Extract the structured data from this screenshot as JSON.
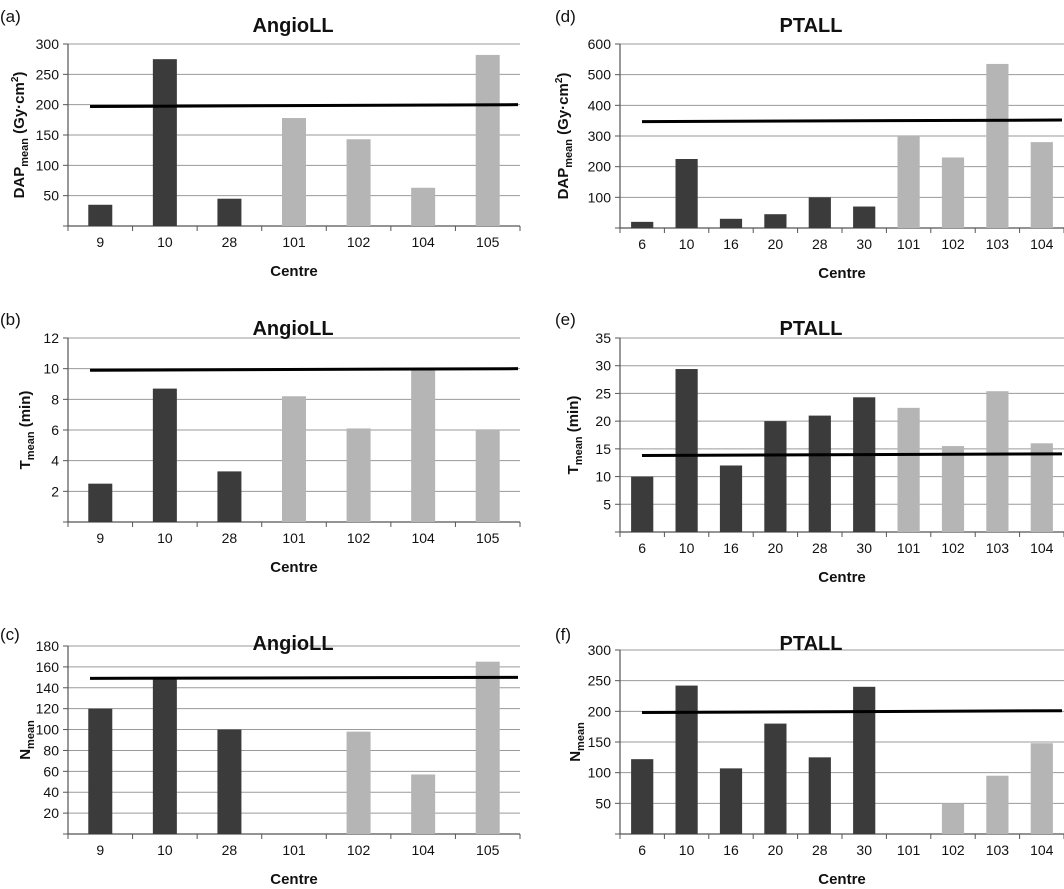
{
  "colors": {
    "dark_bar": "#3b3b3b",
    "light_bar": "#b5b5b5",
    "grid": "#9a9a9a",
    "reference_line": "#000000"
  },
  "chart_data": [
    {
      "type": "bar",
      "panel_label": "(a)",
      "title": "AngioLL",
      "xlabel": "Centre",
      "ylabel_main": "DAP",
      "ylabel_sub": "mean",
      "ylabel_unit": " (Gy·cm",
      "ylabel_sup": "2",
      "ylabel_close": ")",
      "categories": [
        "9",
        "10",
        "28",
        "101",
        "102",
        "104",
        "105"
      ],
      "values": [
        35,
        275,
        45,
        178,
        143,
        63,
        282
      ],
      "bar_groups": [
        "dark",
        "dark",
        "dark",
        "light",
        "light",
        "light",
        "light"
      ],
      "ylim": [
        0,
        300
      ],
      "yticks": [
        50,
        100,
        150,
        200,
        250,
        300
      ],
      "reference_line": [
        197,
        200
      ],
      "grid": true
    },
    {
      "type": "bar",
      "panel_label": "(b)",
      "title": "AngioLL",
      "xlabel": "Centre",
      "ylabel_main": "T",
      "ylabel_sub": "mean",
      "ylabel_unit": " (min)",
      "ylabel_sup": "",
      "ylabel_close": "",
      "categories": [
        "9",
        "10",
        "28",
        "101",
        "102",
        "104",
        "105"
      ],
      "values": [
        2.5,
        8.7,
        3.3,
        8.2,
        6.1,
        10.0,
        6.0
      ],
      "bar_groups": [
        "dark",
        "dark",
        "dark",
        "light",
        "light",
        "light",
        "light"
      ],
      "ylim": [
        0,
        12
      ],
      "yticks": [
        2,
        4,
        6,
        8,
        10,
        12
      ],
      "reference_line": [
        9.9,
        10.0
      ],
      "grid": true
    },
    {
      "type": "bar",
      "panel_label": "(c)",
      "title": "AngioLL",
      "xlabel": "Centre",
      "ylabel_main": "N",
      "ylabel_sub": "mean",
      "ylabel_unit": "",
      "ylabel_sup": "",
      "ylabel_close": "",
      "categories": [
        "9",
        "10",
        "28",
        "101",
        "102",
        "104",
        "105"
      ],
      "values": [
        120,
        150,
        100,
        0,
        98,
        57,
        165
      ],
      "bar_groups": [
        "dark",
        "dark",
        "dark",
        "light",
        "light",
        "light",
        "light"
      ],
      "ylim": [
        0,
        180
      ],
      "yticks": [
        20,
        40,
        60,
        80,
        100,
        120,
        140,
        160,
        180
      ],
      "reference_line": [
        149,
        150
      ],
      "grid": true
    },
    {
      "type": "bar",
      "panel_label": "(d)",
      "title": "PTALL",
      "xlabel": "Centre",
      "ylabel_main": "DAP",
      "ylabel_sub": "mean",
      "ylabel_unit": " (Gy·cm",
      "ylabel_sup": "2",
      "ylabel_close": ")",
      "categories": [
        "6",
        "10",
        "16",
        "20",
        "28",
        "30",
        "101",
        "102",
        "103",
        "104"
      ],
      "values": [
        20,
        225,
        30,
        45,
        100,
        70,
        300,
        230,
        535,
        280
      ],
      "bar_groups": [
        "dark",
        "dark",
        "dark",
        "dark",
        "dark",
        "dark",
        "light",
        "light",
        "light",
        "light"
      ],
      "ylim": [
        0,
        600
      ],
      "yticks": [
        100,
        200,
        300,
        400,
        500,
        600
      ],
      "reference_line": [
        347,
        352
      ],
      "grid": true
    },
    {
      "type": "bar",
      "panel_label": "(e)",
      "title": "PTALL",
      "xlabel": "Centre",
      "ylabel_main": "T",
      "ylabel_sub": "mean",
      "ylabel_unit": " (min)",
      "ylabel_sup": "",
      "ylabel_close": "",
      "categories": [
        "6",
        "10",
        "16",
        "20",
        "28",
        "30",
        "101",
        "102",
        "103",
        "104"
      ],
      "values": [
        10,
        29.4,
        12,
        20,
        21,
        24.3,
        22.4,
        15.5,
        25.4,
        16
      ],
      "bar_groups": [
        "dark",
        "dark",
        "dark",
        "dark",
        "dark",
        "dark",
        "light",
        "light",
        "light",
        "light"
      ],
      "ylim": [
        0,
        35
      ],
      "yticks": [
        5,
        10,
        15,
        20,
        25,
        30,
        35
      ],
      "reference_line": [
        13.8,
        14.1
      ],
      "grid": true
    },
    {
      "type": "bar",
      "panel_label": "(f)",
      "title": "PTALL",
      "xlabel": "Centre",
      "ylabel_main": "N",
      "ylabel_sub": "mean",
      "ylabel_unit": "",
      "ylabel_sup": "",
      "ylabel_close": "",
      "categories": [
        "6",
        "10",
        "16",
        "20",
        "28",
        "30",
        "101",
        "102",
        "103",
        "104"
      ],
      "values": [
        122,
        242,
        107,
        180,
        125,
        240,
        0,
        50,
        95,
        148
      ],
      "bar_groups": [
        "dark",
        "dark",
        "dark",
        "dark",
        "dark",
        "dark",
        "light",
        "light",
        "light",
        "light"
      ],
      "ylim": [
        0,
        300
      ],
      "yticks": [
        50,
        100,
        150,
        200,
        250,
        300
      ],
      "reference_line": [
        198,
        201
      ],
      "grid": true
    }
  ]
}
